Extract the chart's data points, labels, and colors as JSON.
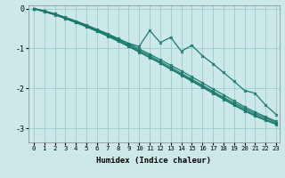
{
  "xlabel": "Humidex (Indice chaleur)",
  "xlim_min": -0.5,
  "xlim_max": 23.3,
  "ylim_min": -3.35,
  "ylim_max": 0.08,
  "yticks": [
    0,
    -1,
    -2,
    -3
  ],
  "xticks": [
    0,
    1,
    2,
    3,
    4,
    5,
    6,
    7,
    8,
    9,
    10,
    11,
    12,
    13,
    14,
    15,
    16,
    17,
    18,
    19,
    20,
    21,
    22,
    23
  ],
  "bg_color": "#cce8e8",
  "grid_color": "#99cccc",
  "line_color": "#1a7a6e",
  "series": {
    "zigzag": [
      0.0,
      -0.07,
      -0.15,
      -0.25,
      -0.35,
      -0.44,
      -0.55,
      -0.65,
      -0.76,
      -0.87,
      -0.95,
      -0.55,
      -0.85,
      -0.72,
      -1.07,
      -0.92,
      -1.18,
      -1.38,
      -1.6,
      -1.82,
      -2.05,
      -2.12,
      -2.42,
      -2.65
    ],
    "line1": [
      0.0,
      -0.06,
      -0.13,
      -0.22,
      -0.31,
      -0.41,
      -0.52,
      -0.63,
      -0.75,
      -0.88,
      -1.01,
      -1.14,
      -1.28,
      -1.42,
      -1.56,
      -1.71,
      -1.86,
      -2.01,
      -2.16,
      -2.31,
      -2.46,
      -2.59,
      -2.71,
      -2.82
    ],
    "line2": [
      -0.01,
      -0.08,
      -0.16,
      -0.25,
      -0.35,
      -0.46,
      -0.57,
      -0.69,
      -0.82,
      -0.95,
      -1.09,
      -1.23,
      -1.37,
      -1.52,
      -1.67,
      -1.82,
      -1.97,
      -2.12,
      -2.27,
      -2.42,
      -2.56,
      -2.69,
      -2.8,
      -2.9
    ],
    "line3": [
      0.0,
      -0.07,
      -0.15,
      -0.24,
      -0.34,
      -0.45,
      -0.56,
      -0.68,
      -0.81,
      -0.94,
      -1.08,
      -1.22,
      -1.36,
      -1.51,
      -1.65,
      -1.8,
      -1.95,
      -2.1,
      -2.25,
      -2.4,
      -2.54,
      -2.67,
      -2.78,
      -2.88
    ],
    "line4": [
      0.0,
      -0.06,
      -0.14,
      -0.23,
      -0.33,
      -0.43,
      -0.54,
      -0.66,
      -0.78,
      -0.91,
      -1.05,
      -1.18,
      -1.33,
      -1.47,
      -1.62,
      -1.77,
      -1.92,
      -2.07,
      -2.22,
      -2.36,
      -2.5,
      -2.63,
      -2.74,
      -2.85
    ]
  }
}
